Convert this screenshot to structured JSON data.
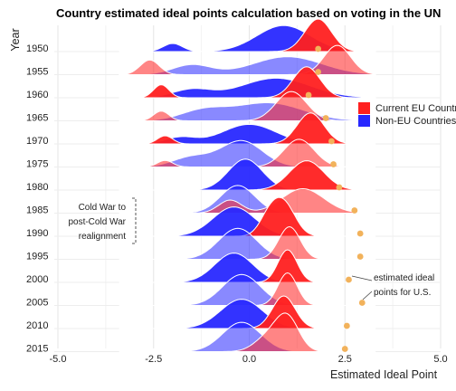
{
  "chart_data": {
    "type": "ridgeline",
    "title": "Country estimated ideal points calculation based on voting in the UN",
    "xlabel": "Estimated Ideal Point",
    "ylabel": "Year",
    "xlim": [
      -5.0,
      5.0
    ],
    "x_ticks": [
      "-5.0",
      "-2.5",
      "0.0",
      "2.5",
      "5.0"
    ],
    "grid": true,
    "legend": {
      "position": "right",
      "entries": [
        {
          "label": "Current EU Countries",
          "color": "#ff2020"
        },
        {
          "label": "Non-EU Countries",
          "color": "#2828ff"
        }
      ]
    },
    "years": [
      "1950",
      "1955",
      "1960",
      "1965",
      "1970",
      "1975",
      "1980",
      "1985",
      "1990",
      "1995",
      "2000",
      "2005",
      "2010",
      "2015"
    ],
    "series": [
      {
        "name": "Current EU Countries",
        "color": "#ff2020",
        "ridges": [
          [
            [
              1.8,
              0.35,
              1.0
            ]
          ],
          [
            [
              2.3,
              0.35,
              0.9
            ],
            [
              -2.6,
              0.25,
              0.45
            ]
          ],
          [
            [
              1.5,
              0.35,
              0.95
            ],
            [
              -2.3,
              0.2,
              0.4
            ]
          ],
          [
            [
              1.1,
              0.4,
              0.9
            ],
            [
              -2.3,
              0.2,
              0.3
            ]
          ],
          [
            [
              1.6,
              0.35,
              0.95
            ],
            [
              -2.2,
              0.2,
              0.25
            ]
          ],
          [
            [
              1.3,
              0.4,
              0.85
            ],
            [
              -2.2,
              0.2,
              0.2
            ]
          ],
          [
            [
              1.5,
              0.45,
              0.9
            ]
          ],
          [
            [
              1.4,
              0.55,
              0.75
            ],
            [
              -0.5,
              0.3,
              0.4
            ]
          ],
          [
            [
              0.9,
              0.3,
              1.0
            ],
            [
              0.5,
              0.25,
              0.5
            ]
          ],
          [
            [
              1.05,
              0.28,
              1.0
            ]
          ],
          [
            [
              1.0,
              0.25,
              1.0
            ]
          ],
          [
            [
              1.0,
              0.25,
              1.0
            ]
          ],
          [
            [
              0.9,
              0.3,
              1.0
            ]
          ],
          [
            [
              1.0,
              0.3,
              1.0
            ],
            [
              0.5,
              0.35,
              0.45
            ]
          ]
        ]
      },
      {
        "name": "Non-EU Countries",
        "color": "#2828ff",
        "ridges": [
          [
            [
              0.9,
              0.7,
              0.8
            ],
            [
              -2.0,
              0.25,
              0.25
            ]
          ],
          [
            [
              1.0,
              0.9,
              0.55
            ],
            [
              -1.5,
              0.5,
              0.3
            ]
          ],
          [
            [
              0.7,
              0.9,
              0.6
            ],
            [
              -1.5,
              0.5,
              0.25
            ]
          ],
          [
            [
              0.5,
              0.9,
              0.55
            ],
            [
              -1.2,
              0.6,
              0.3
            ]
          ],
          [
            [
              0.0,
              0.7,
              0.6
            ],
            [
              -1.8,
              0.4,
              0.2
            ]
          ],
          [
            [
              -0.2,
              0.55,
              0.8
            ],
            [
              -1.5,
              0.5,
              0.3
            ]
          ],
          [
            [
              -0.1,
              0.45,
              0.95
            ]
          ],
          [
            [
              -0.3,
              0.45,
              0.85
            ]
          ],
          [
            [
              -0.4,
              0.55,
              0.9
            ]
          ],
          [
            [
              -0.3,
              0.5,
              0.95
            ]
          ],
          [
            [
              -0.4,
              0.5,
              0.9
            ]
          ],
          [
            [
              -0.2,
              0.5,
              0.95
            ]
          ],
          [
            [
              -0.2,
              0.55,
              0.9
            ]
          ],
          [
            [
              -0.2,
              0.5,
              0.9
            ]
          ]
        ]
      }
    ],
    "us_points": [
      1.8,
      1.8,
      1.55,
      2.0,
      2.15,
      2.2,
      2.35,
      2.75,
      2.9,
      2.9,
      2.6,
      2.95,
      2.55,
      2.5
    ],
    "annotations": [
      {
        "lines": [
          "Cold War to",
          "post-Cold War",
          "realignment"
        ]
      },
      {
        "lines": [
          "estimated ideal",
          "points for U.S."
        ]
      }
    ]
  }
}
